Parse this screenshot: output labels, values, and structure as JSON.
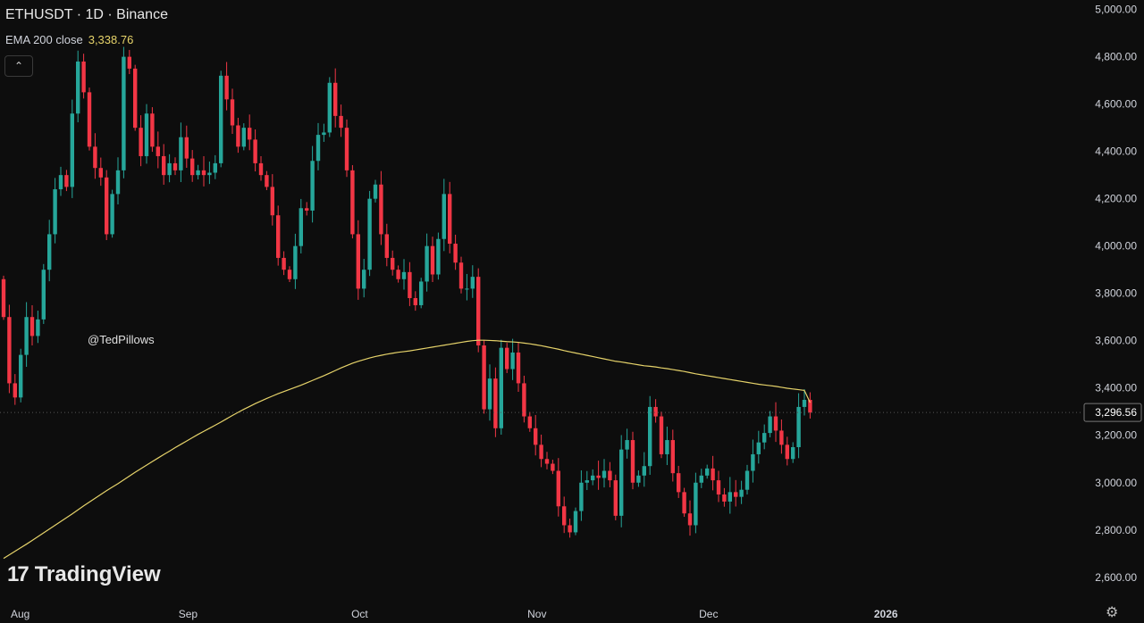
{
  "header": {
    "title": "ETHUSDT · 1D · Binance",
    "ema_label": "EMA 200 close",
    "ema_value": "3,338.76",
    "collapse_icon": "chevron-up-icon"
  },
  "watermark": "@TedPillows",
  "logo": {
    "mark": "17",
    "text": "TradingView"
  },
  "colors": {
    "up": "#26a69a",
    "down": "#f23645",
    "ema": "#e6d36a",
    "bg": "#0d0d0d",
    "text": "#d1d4dc"
  },
  "chart_data": {
    "type": "candlestick",
    "title": "ETHUSDT · 1D · Binance",
    "ylim": [
      2520,
      5040
    ],
    "yticks": [
      5000,
      4800,
      4600,
      4400,
      4200,
      4000,
      3800,
      3600,
      3400,
      3200,
      3000,
      2800,
      2600
    ],
    "ytick_labels": [
      "5,000.00",
      "4,800.00",
      "4,600.00",
      "4,400.00",
      "4,200.00",
      "4,000.00",
      "3,800.00",
      "3,600.00",
      "3,400.00",
      "3,200.00",
      "3,000.00",
      "2,800.00",
      "2,600.00"
    ],
    "last_price": 3296.56,
    "last_price_label": "3,296.56",
    "x_months": [
      {
        "label": "Aug",
        "day": 0
      },
      {
        "label": "Sep",
        "day": 31
      },
      {
        "label": "Oct",
        "day": 61
      },
      {
        "label": "Nov",
        "day": 92
      },
      {
        "label": "Dec",
        "day": 122
      },
      {
        "label": "2026",
        "day": 153
      }
    ],
    "closes": [
      3700,
      3420,
      3360,
      3540,
      3700,
      3620,
      3690,
      3900,
      4050,
      4240,
      4300,
      4250,
      4560,
      4780,
      4650,
      4420,
      4330,
      4290,
      4050,
      4220,
      4320,
      4800,
      4750,
      4500,
      4380,
      4560,
      4420,
      4380,
      4300,
      4350,
      4320,
      4460,
      4370,
      4300,
      4320,
      4300,
      4310,
      4350,
      4720,
      4620,
      4510,
      4420,
      4500,
      4450,
      4350,
      4300,
      4250,
      4130,
      3950,
      3900,
      3860,
      4000,
      4160,
      4150,
      4360,
      4470,
      4480,
      4690,
      4550,
      4500,
      4320,
      4050,
      3820,
      3900,
      4200,
      4260,
      4050,
      3950,
      3900,
      3860,
      3890,
      3780,
      3750,
      3850,
      4000,
      3880,
      4030,
      4220,
      4010,
      3930,
      3820,
      3820,
      3870,
      3580,
      3310,
      3440,
      3230,
      3570,
      3480,
      3550,
      3420,
      3280,
      3230,
      3160,
      3100,
      3080,
      3050,
      2900,
      2820,
      2790,
      2880,
      3000,
      3010,
      3030,
      3020,
      3050,
      3010,
      2860,
      3140,
      3180,
      3000,
      3030,
      3070,
      3320,
      3280,
      3120,
      3180,
      3040,
      2960,
      2870,
      2820,
      3000,
      3030,
      3060,
      3010,
      2950,
      2920,
      2960,
      2940,
      2970,
      3050,
      3120,
      3170,
      3210,
      3280,
      3220,
      3160,
      3100,
      3150,
      3320,
      3350,
      3296.56
    ],
    "ema200": [
      2680,
      2695,
      2710,
      2725,
      2740,
      2756,
      2772,
      2788,
      2804,
      2820,
      2836,
      2852,
      2868,
      2885,
      2902,
      2918,
      2934,
      2950,
      2966,
      2981,
      2996,
      3012,
      3028,
      3044,
      3059,
      3074,
      3089,
      3104,
      3119,
      3133,
      3148,
      3162,
      3176,
      3190,
      3204,
      3217,
      3230,
      3243,
      3256,
      3270,
      3284,
      3297,
      3310,
      3322,
      3334,
      3345,
      3356,
      3366,
      3376,
      3385,
      3394,
      3403,
      3412,
      3422,
      3432,
      3442,
      3452,
      3463,
      3474,
      3485,
      3495,
      3505,
      3513,
      3520,
      3527,
      3533,
      3538,
      3543,
      3547,
      3551,
      3554,
      3557,
      3561,
      3565,
      3569,
      3573,
      3577,
      3581,
      3585,
      3589,
      3593,
      3597,
      3600,
      3602,
      3602,
      3601,
      3600,
      3598,
      3596,
      3595,
      3593,
      3590,
      3587,
      3583,
      3579,
      3574,
      3569,
      3564,
      3558,
      3553,
      3548,
      3543,
      3538,
      3533,
      3528,
      3523,
      3518,
      3513,
      3510,
      3506,
      3502,
      3498,
      3494,
      3492,
      3489,
      3485,
      3482,
      3478,
      3474,
      3470,
      3465,
      3460,
      3456,
      3452,
      3448,
      3444,
      3440,
      3436,
      3432,
      3428,
      3424,
      3420,
      3416,
      3413,
      3410,
      3407,
      3403,
      3399,
      3396,
      3393,
      3390,
      3338.76
    ]
  }
}
